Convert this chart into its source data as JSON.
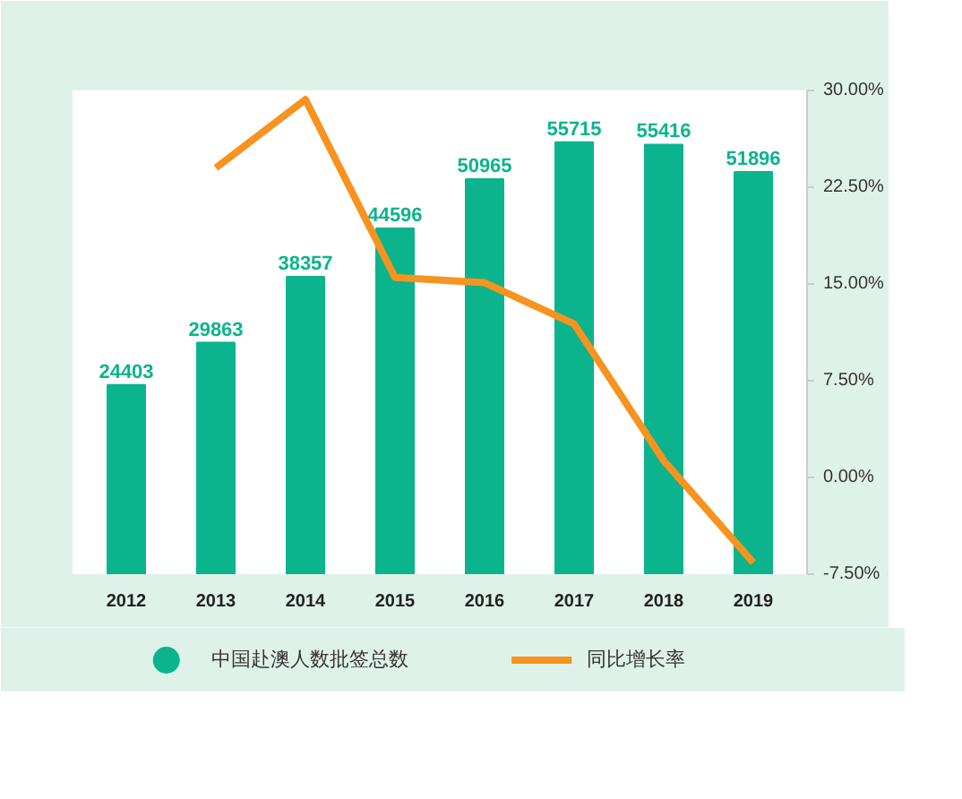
{
  "chart_data": {
    "type": "bar",
    "categories": [
      "2012",
      "2013",
      "2014",
      "2015",
      "2016",
      "2017",
      "2018",
      "2019"
    ],
    "series": [
      {
        "name": "中国赴澳人数批签总数",
        "color": "#0bb48c",
        "values": [
          24403,
          29863,
          38357,
          44596,
          50965,
          55715,
          55416,
          51896
        ],
        "value_labels": [
          "24403",
          "29863",
          "38357",
          "44596",
          "50965",
          "55715",
          "55416",
          "51896"
        ]
      },
      {
        "name": "同比增长率",
        "type": "line",
        "axis": "y2",
        "color": "#f7931e",
        "values": [
          null,
          24.0,
          29.3,
          15.5,
          15.1,
          11.9,
          1.3,
          -6.6
        ]
      }
    ],
    "y2lim": [
      -7.5,
      30
    ],
    "y2ticks": [
      {
        "value": -7.5,
        "label": "-7.50%"
      },
      {
        "value": 0,
        "label": "0.00%"
      },
      {
        "value": 7.5,
        "label": "7.50%"
      },
      {
        "value": 15,
        "label": "15.00%"
      },
      {
        "value": 22.5,
        "label": "22.50%"
      },
      {
        "value": 30,
        "label": "30.00%"
      }
    ],
    "legend": "bottom",
    "line_style": "solid"
  }
}
